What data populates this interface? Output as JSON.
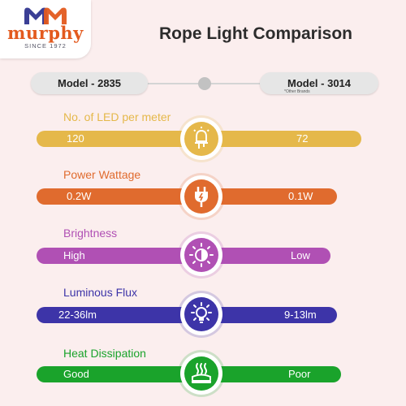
{
  "brand": {
    "name": "murphy",
    "since": "SINCE 1972"
  },
  "title": "Rope Light Comparison",
  "models": {
    "left": "Model - 2835",
    "right": "Model - 3014",
    "right_note": "*Other Brands"
  },
  "rows": [
    {
      "title": "No. of LED per meter",
      "left": "120",
      "right": "72",
      "icon": "led-bulb-icon",
      "color": "#e5b84a"
    },
    {
      "title": "Power Wattage",
      "left": "0.2W",
      "right": "0.1W",
      "icon": "power-plug-icon",
      "color": "#e06b2e"
    },
    {
      "title": "Brightness",
      "left": "High",
      "right": "Low",
      "icon": "brightness-icon",
      "color": "#b050b4"
    },
    {
      "title": "Luminous Flux",
      "left": "22-36lm",
      "right": "9-13lm",
      "icon": "lightbulb-rays-icon",
      "color": "#3d34a8"
    },
    {
      "title": "Heat Dissipation",
      "left": "Good",
      "right": "Poor",
      "icon": "heat-waves-icon",
      "color": "#1aa32b"
    }
  ]
}
